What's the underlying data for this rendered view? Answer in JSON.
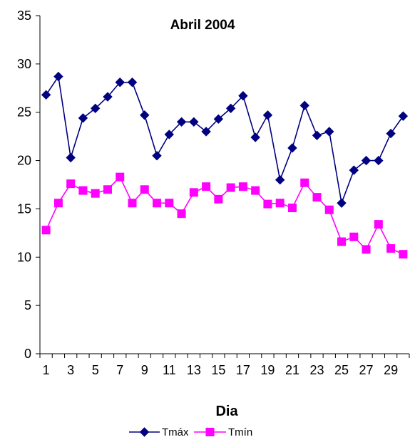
{
  "chart_data": {
    "type": "line",
    "title": "Abril 2004",
    "xlabel": "Dia",
    "ylabel": "",
    "ylim": [
      0,
      35
    ],
    "y_ticks": [
      "0",
      "5",
      "10",
      "15",
      "20",
      "25",
      "30",
      "35"
    ],
    "x": [
      1,
      2,
      3,
      4,
      5,
      6,
      7,
      8,
      9,
      10,
      11,
      12,
      13,
      14,
      15,
      16,
      17,
      18,
      19,
      20,
      21,
      22,
      23,
      24,
      25,
      26,
      27,
      28,
      29,
      30
    ],
    "x_tick_labels": [
      "1",
      "3",
      "5",
      "7",
      "9",
      "11",
      "13",
      "15",
      "17",
      "19",
      "21",
      "23",
      "25",
      "27",
      "29"
    ],
    "grid": false,
    "legend_position": "bottom",
    "series": [
      {
        "name": "Tmáx",
        "color": "#000080",
        "marker": "diamond",
        "values": [
          26.8,
          28.7,
          20.3,
          24.4,
          25.4,
          26.6,
          28.1,
          28.1,
          24.7,
          20.5,
          22.7,
          24.0,
          24.0,
          23.0,
          24.3,
          25.4,
          26.7,
          22.4,
          24.7,
          18.0,
          21.3,
          25.7,
          22.6,
          23.0,
          15.6,
          19.0,
          20.0,
          20.0,
          22.8,
          24.6
        ]
      },
      {
        "name": "Tmín",
        "color": "#FF00FF",
        "marker": "square",
        "values": [
          12.8,
          15.6,
          17.6,
          16.9,
          16.6,
          17.0,
          18.3,
          15.6,
          17.0,
          15.6,
          15.6,
          14.5,
          16.7,
          17.3,
          16.0,
          17.2,
          17.3,
          16.9,
          15.5,
          15.6,
          15.1,
          17.7,
          16.2,
          14.9,
          11.6,
          12.1,
          10.8,
          13.4,
          10.9,
          10.3
        ]
      }
    ]
  }
}
